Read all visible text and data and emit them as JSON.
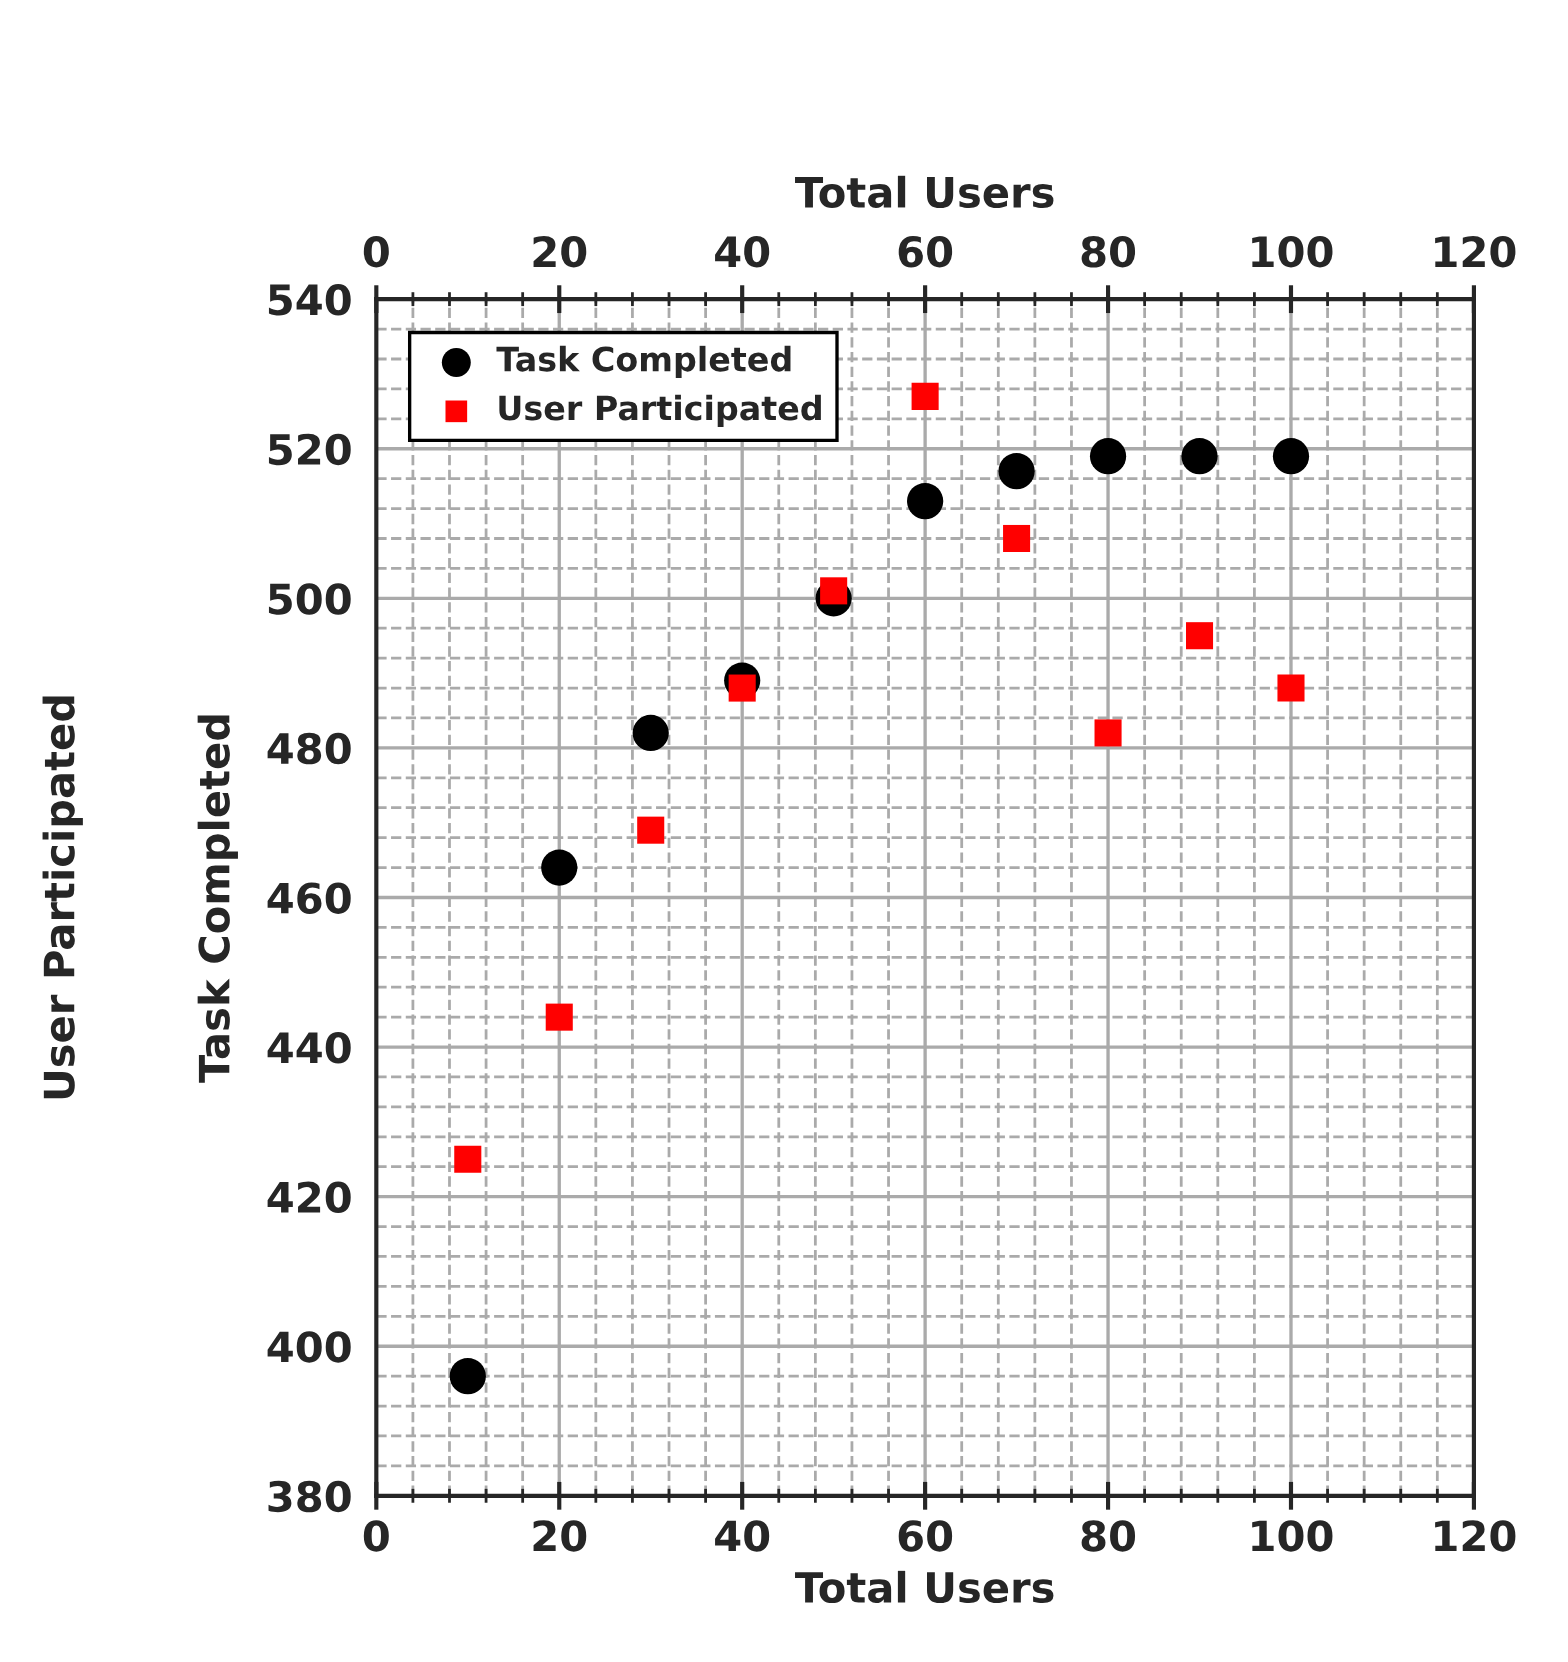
{
  "chart_data": {
    "type": "scatter",
    "xlabel": "Total Users",
    "x2label": "Total Users",
    "ylabel": "Task Completed",
    "y2label": "User Participated",
    "x": [
      10,
      20,
      30,
      40,
      50,
      60,
      70,
      80,
      90,
      100
    ],
    "series": [
      {
        "name": "Task Completed",
        "color": "#000000",
        "marker": "circle",
        "values": [
          396,
          464,
          482,
          489,
          500,
          513,
          517,
          519,
          519,
          519
        ]
      },
      {
        "name": "User Participated",
        "color": "#ff0000",
        "marker": "square",
        "values": [
          425,
          444,
          469,
          488,
          501,
          527,
          508,
          482,
          495,
          488
        ]
      }
    ],
    "xlim": [
      0,
      120
    ],
    "xticks": [
      0,
      20,
      40,
      60,
      80,
      100,
      120
    ],
    "x2lim": [
      0,
      120
    ],
    "x2ticks": [
      0,
      20,
      40,
      60,
      80,
      100,
      120
    ],
    "ylim": [
      380,
      540
    ],
    "yticks": [
      380,
      400,
      420,
      440,
      460,
      480,
      500,
      520,
      540
    ],
    "grid": true,
    "legend": "top left"
  }
}
